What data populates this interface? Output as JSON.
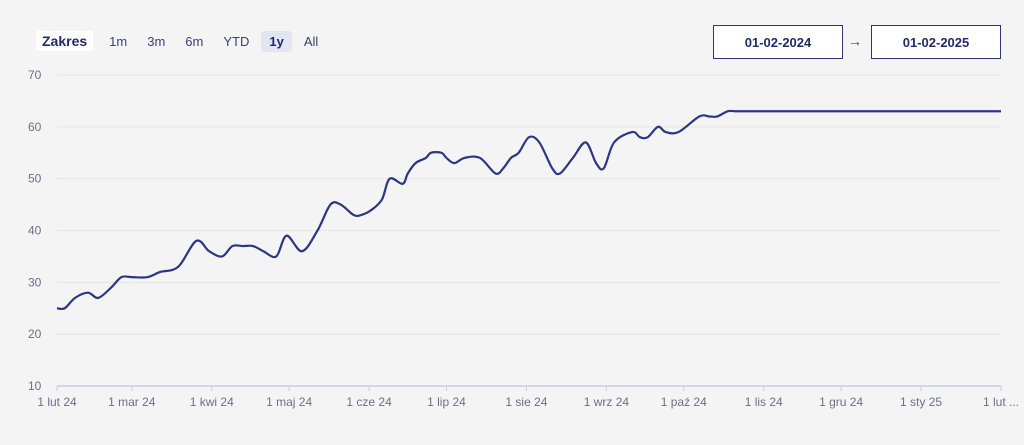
{
  "range": {
    "label": "Zakres",
    "buttons": [
      "1m",
      "3m",
      "6m",
      "YTD",
      "1y",
      "All"
    ],
    "active": "1y"
  },
  "dates": {
    "from": "01-02-2024",
    "arrow": "→",
    "to": "01-02-2025"
  },
  "colors": {
    "line": "#2d3585",
    "grid": "#e4e4e4",
    "axis": "#c5cbe6",
    "background": "#f4f4f4"
  },
  "chart_data": {
    "type": "line",
    "title": "",
    "xlabel": "",
    "ylabel": "",
    "ylim": [
      10,
      70
    ],
    "yticks": [
      10,
      20,
      30,
      40,
      50,
      60,
      70
    ],
    "grid": true,
    "xtick_labels": [
      "1 lut 24",
      "1 mar 24",
      "1 kwi 24",
      "1 maj 24",
      "1 cze 24",
      "1 lip 24",
      "1 sie 24",
      "1 wrz 24",
      "1 paź 24",
      "1 lis 24",
      "1 gru 24",
      "1 sty 25",
      "1 lut ..."
    ],
    "xtick_days": [
      0,
      29,
      60,
      90,
      121,
      151,
      182,
      213,
      243,
      274,
      304,
      335,
      366
    ],
    "series": [
      {
        "x": [
          0,
          3,
          7,
          12,
          16,
          21,
          25,
          29,
          35,
          40,
          47,
          54,
          59,
          64,
          68,
          72,
          76,
          80,
          85,
          89,
          95,
          101,
          106,
          110,
          115,
          118,
          122,
          126,
          129,
          134,
          136,
          139,
          143,
          145,
          149,
          151,
          154,
          158,
          164,
          170,
          173,
          176,
          179,
          183,
          187,
          192,
          195,
          200,
          205,
          209,
          212,
          216,
          223,
          226,
          229,
          233,
          236,
          241,
          249,
          253,
          256,
          260,
          263,
          267,
          271,
          277,
          280,
          285,
          292,
          295,
          301,
          306,
          309,
          314,
          319,
          323,
          330,
          336,
          344,
          347,
          353,
          358,
          366
        ],
        "y": [
          25,
          25,
          27,
          28,
          27,
          29,
          31,
          31,
          31,
          32,
          33,
          38,
          36,
          35,
          37,
          37,
          37,
          36,
          35,
          39,
          36,
          40,
          45,
          45,
          43,
          43,
          44,
          46,
          50,
          49,
          51,
          53,
          54,
          55,
          55,
          54,
          53,
          54,
          54,
          51,
          52,
          54,
          55,
          58,
          57,
          52,
          51,
          54,
          57,
          53,
          52,
          57,
          59,
          58,
          58,
          60,
          59,
          59,
          62,
          62,
          62,
          63,
          63,
          63,
          63,
          63,
          63,
          63,
          63,
          63,
          63,
          63,
          63,
          63,
          63,
          63,
          63,
          63,
          63,
          63,
          63,
          63,
          63
        ]
      }
    ]
  }
}
